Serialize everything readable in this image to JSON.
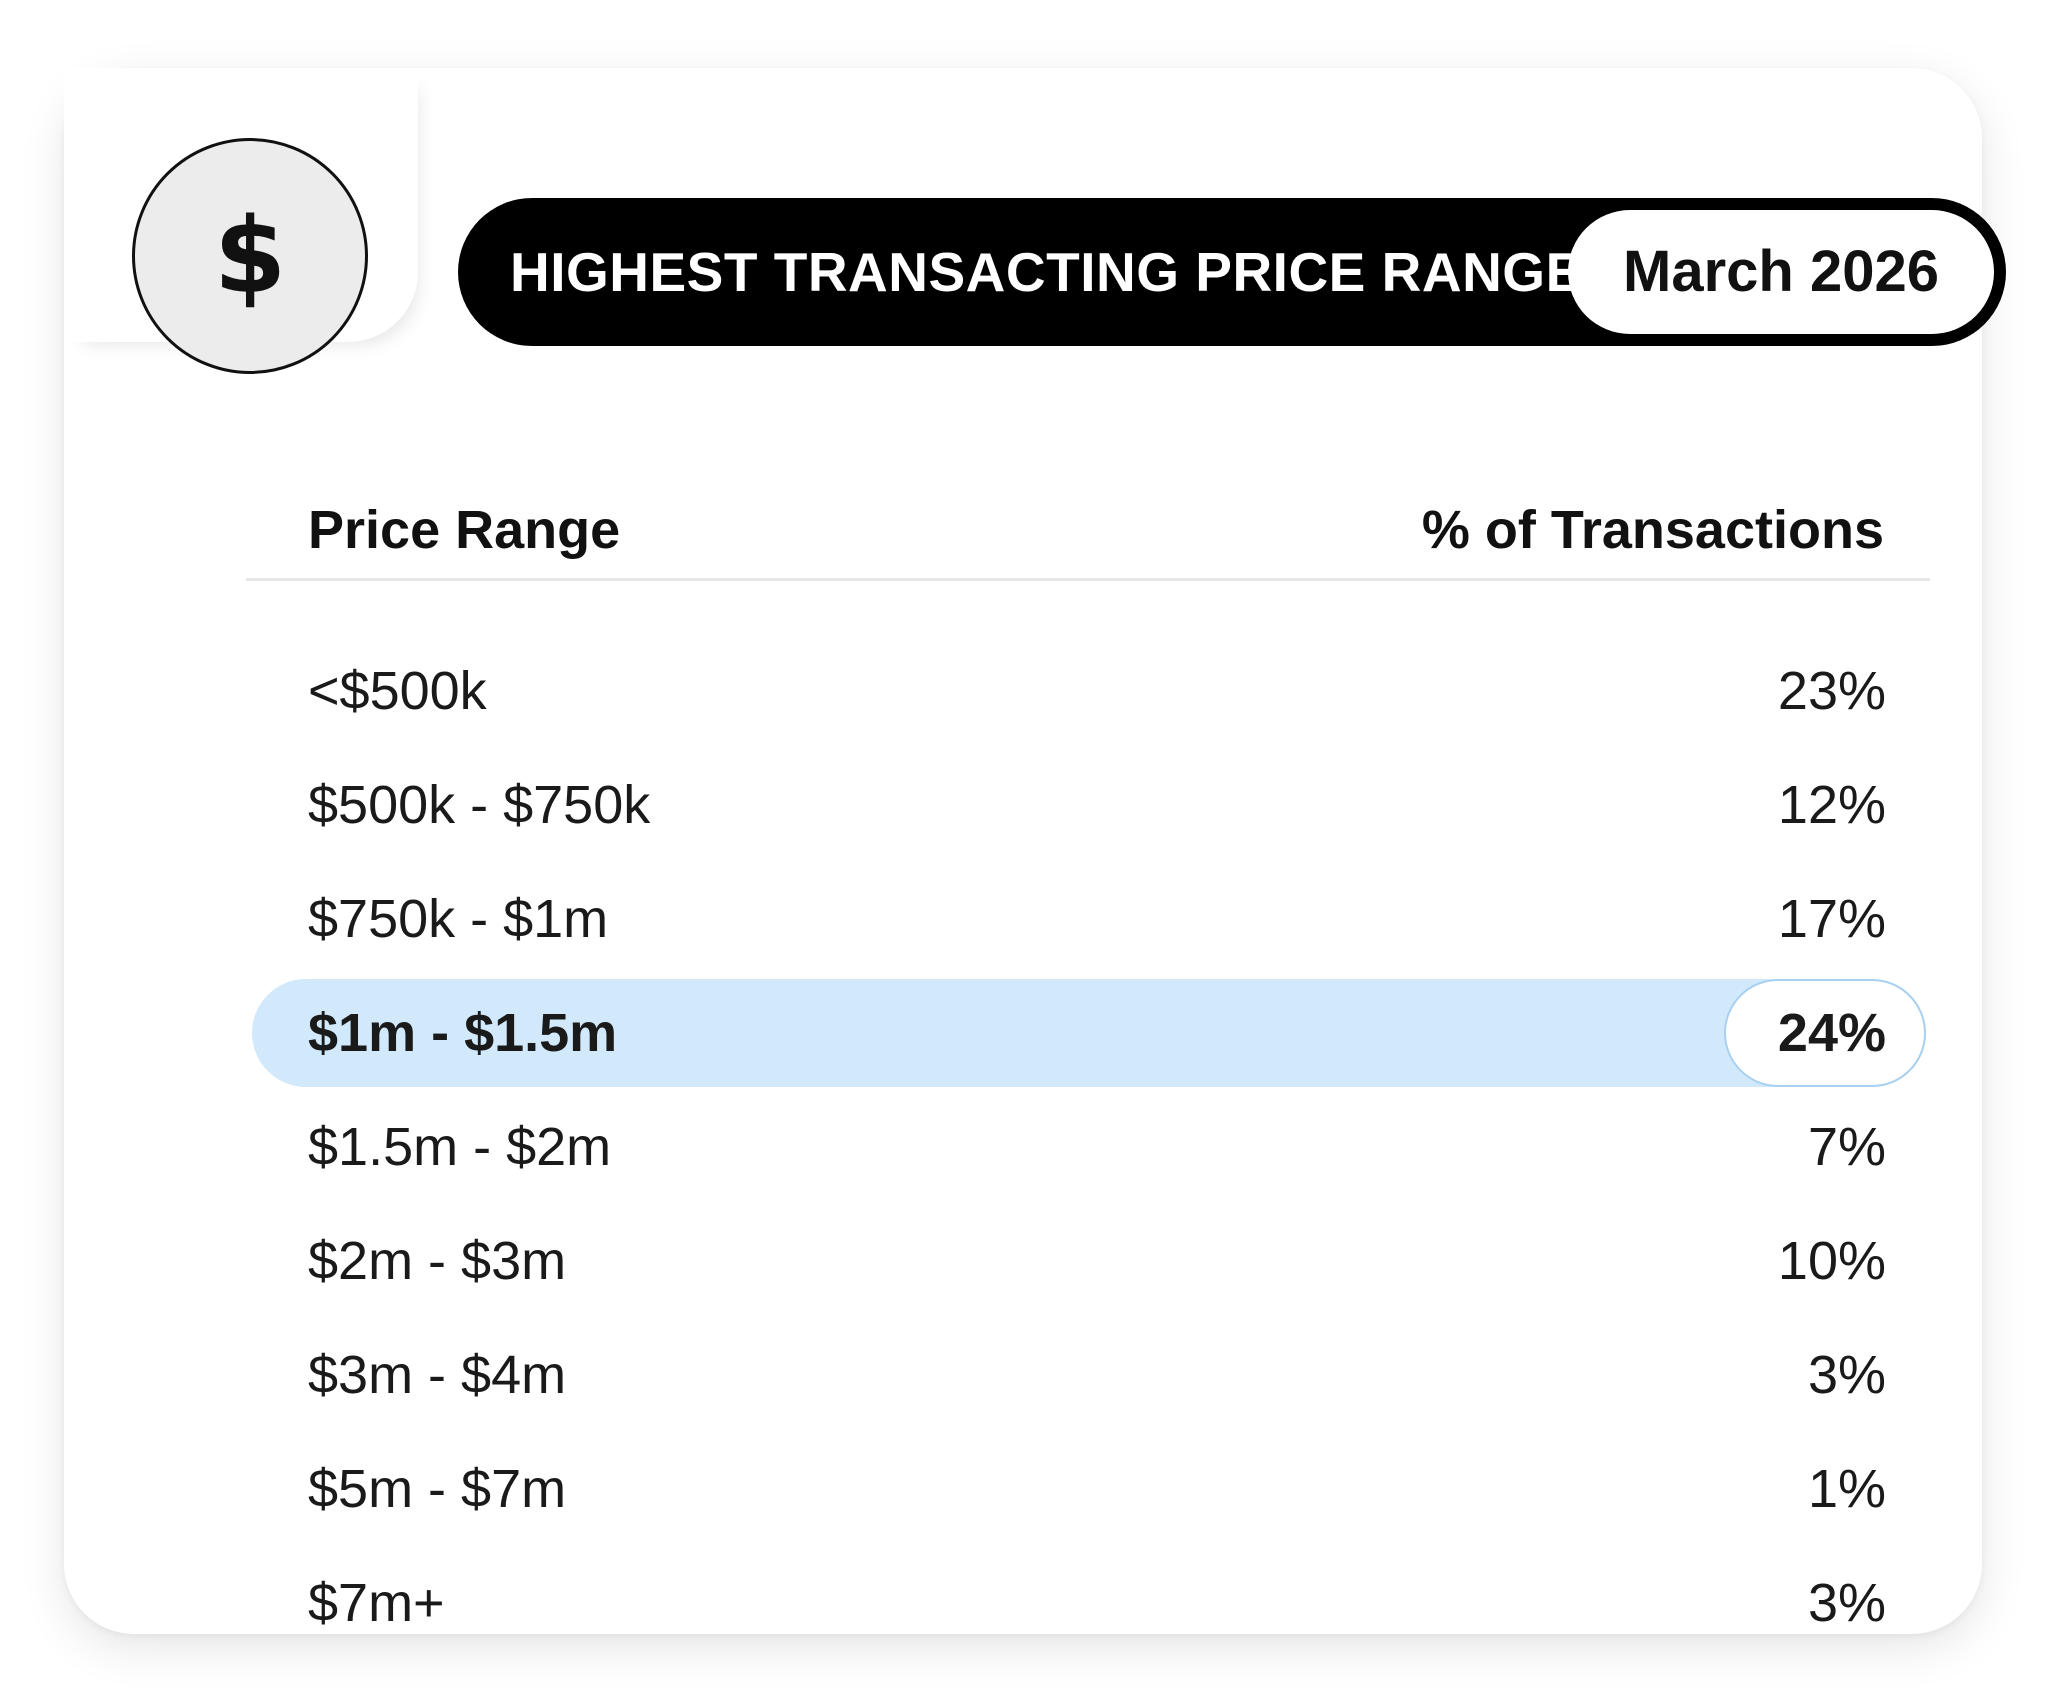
{
  "header": {
    "icon": "dollar-icon",
    "icon_glyph": "$",
    "title": "HIGHEST TRANSACTING PRICE RANGE",
    "date": "March 2026"
  },
  "table": {
    "columns": [
      "Price Range",
      "% of Transactions"
    ],
    "rows": [
      {
        "range": "<$500k",
        "percent": "23%"
      },
      {
        "range": "$500k - $750k",
        "percent": "12%"
      },
      {
        "range": "$750k - $1m",
        "percent": "17%"
      },
      {
        "range": "$1m - $1.5m",
        "percent": "24%",
        "highlighted": true
      },
      {
        "range": "$1.5m - $2m",
        "percent": "7%"
      },
      {
        "range": "$2m - $3m",
        "percent": "10%"
      },
      {
        "range": "$3m - $4m",
        "percent": "3%"
      },
      {
        "range": "$5m - $7m",
        "percent": "1%"
      },
      {
        "range": "$7m+",
        "percent": "3%"
      }
    ]
  },
  "colors": {
    "highlight_fill": "#d1e9fb",
    "highlight_border": "#a9d0f0",
    "title_bg": "#000000",
    "icon_bg": "#ececec"
  }
}
